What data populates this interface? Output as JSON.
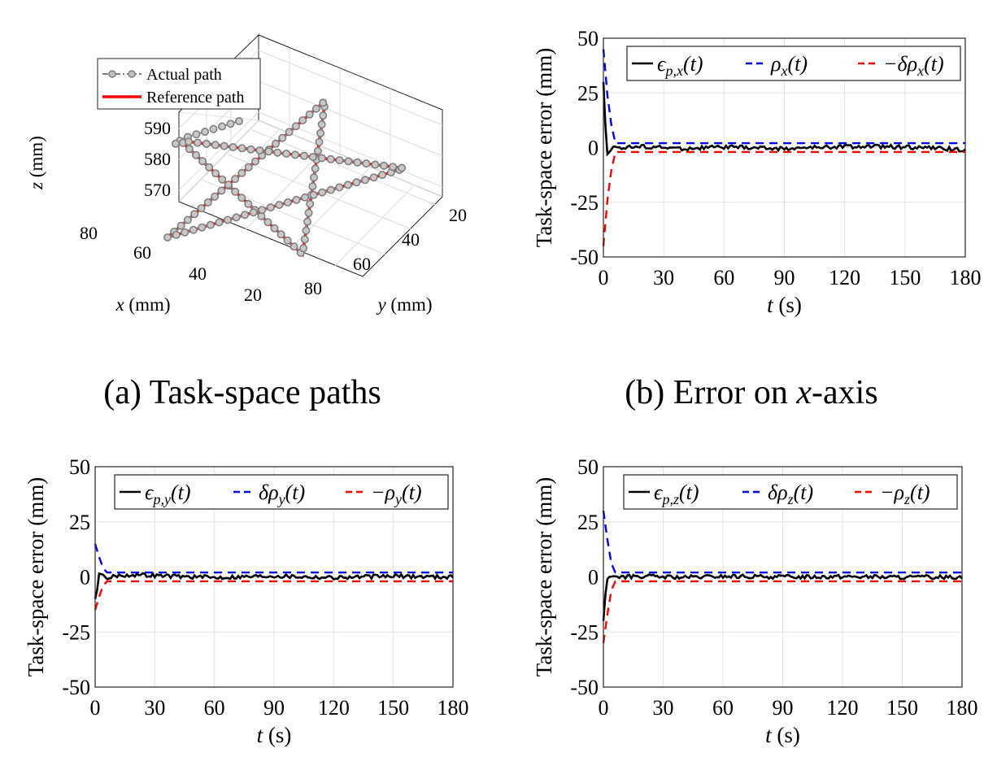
{
  "captions": {
    "a": "(a) Task-space paths",
    "b": "(b) Error on x-axis"
  },
  "chart_data": [
    {
      "id": "a",
      "type": "line3d",
      "title": "Task-space paths",
      "xlabel": "x (mm)",
      "ylabel": "y (mm)",
      "zlabel": "z (mm)",
      "x_ticks": [
        "80",
        "60",
        "40",
        "20"
      ],
      "y_ticks": [
        "20",
        "40",
        "60",
        "80"
      ],
      "z_ticks": [
        "590",
        "580",
        "570"
      ],
      "xlim": [
        15,
        90
      ],
      "ylim": [
        15,
        90
      ],
      "zlim": [
        565,
        595
      ],
      "legend": [
        "Actual path",
        "Reference path"
      ],
      "series": [
        {
          "name": "Actual path",
          "style": "gray dash-dot with circle markers",
          "color": "#7f7f7f"
        },
        {
          "name": "Reference path",
          "style": "solid red",
          "color": "#ff0000"
        }
      ],
      "annotations": [
        "five-pointed star path; actual path starts at approximately (x=20, y=25, z=591) and converges onto the reference star"
      ]
    },
    {
      "id": "b",
      "type": "line",
      "xlabel": "t (s)",
      "ylabel": "Task-space error (mm)",
      "xlim": [
        0,
        180
      ],
      "ylim": [
        -50,
        50
      ],
      "x_ticks": [
        "0",
        "30",
        "60",
        "90",
        "120",
        "150",
        "180"
      ],
      "y_ticks": [
        "50",
        "25",
        "0",
        "-25",
        "-50"
      ],
      "legend": [
        "ε_p,x(t)",
        "ρ_x(t)",
        "−δρ_x(t)"
      ],
      "series": [
        {
          "name": "ε_p,x(t)",
          "color": "#000000",
          "style": "solid",
          "x": [
            0,
            1,
            2,
            3,
            5,
            10,
            20,
            40,
            60,
            90,
            120,
            150,
            180
          ],
          "y": [
            30,
            10,
            -3,
            -2,
            0.5,
            0,
            0.5,
            -0.5,
            0.3,
            -0.5,
            0.5,
            0.3,
            -1
          ]
        },
        {
          "name": "ρ_x(t)",
          "color": "#0000ff",
          "style": "dashed",
          "x": [
            0,
            2,
            4,
            6,
            8,
            180
          ],
          "y": [
            45,
            24,
            10,
            2,
            2,
            2
          ]
        },
        {
          "name": "−δρ_x(t)",
          "color": "#ff0000",
          "style": "dashed",
          "x": [
            0,
            2,
            4,
            6,
            8,
            180
          ],
          "y": [
            -45,
            -24,
            -10,
            -2,
            -2,
            -2
          ]
        }
      ]
    },
    {
      "id": "c",
      "type": "line",
      "xlabel": "t (s)",
      "ylabel": "Task-space error (mm)",
      "xlim": [
        0,
        180
      ],
      "ylim": [
        -50,
        50
      ],
      "x_ticks": [
        "0",
        "30",
        "60",
        "90",
        "120",
        "150",
        "180"
      ],
      "y_ticks": [
        "50",
        "25",
        "0",
        "-25",
        "-50"
      ],
      "legend": [
        "ε_p,y(t)",
        "δρ_y(t)",
        "−ρ_y(t)"
      ],
      "series": [
        {
          "name": "ε_p,y(t)",
          "color": "#000000",
          "style": "solid",
          "x": [
            0,
            1,
            2,
            4,
            6,
            10,
            20,
            40,
            60,
            90,
            120,
            150,
            180
          ],
          "y": [
            -10,
            -6,
            1.5,
            1,
            -1,
            0.5,
            1,
            0.3,
            -0.3,
            0.5,
            -0.3,
            0.3,
            0
          ]
        },
        {
          "name": "δρ_y(t)",
          "color": "#0000ff",
          "style": "dashed",
          "x": [
            0,
            2,
            4,
            6,
            8,
            180
          ],
          "y": [
            15,
            9,
            4,
            2,
            2,
            2
          ]
        },
        {
          "name": "−ρ_y(t)",
          "color": "#ff0000",
          "style": "dashed",
          "x": [
            0,
            2,
            4,
            6,
            8,
            180
          ],
          "y": [
            -15,
            -9,
            -4,
            -2,
            -2,
            -2
          ]
        }
      ]
    },
    {
      "id": "d",
      "type": "line",
      "xlabel": "t (s)",
      "ylabel": "Task-space error (mm)",
      "xlim": [
        0,
        180
      ],
      "ylim": [
        -50,
        50
      ],
      "x_ticks": [
        "0",
        "30",
        "60",
        "90",
        "120",
        "150",
        "180"
      ],
      "y_ticks": [
        "50",
        "25",
        "0",
        "-25",
        "-50"
      ],
      "legend": [
        "ε_p,z(t)",
        "δρ_z(t)",
        "−ρ_z(t)"
      ],
      "series": [
        {
          "name": "ε_p,z(t)",
          "color": "#000000",
          "style": "solid",
          "x": [
            0,
            1,
            2,
            3,
            5,
            10,
            20,
            40,
            60,
            90,
            120,
            150,
            180
          ],
          "y": [
            -20,
            -8,
            -1,
            0,
            0.3,
            0,
            0.3,
            -0.3,
            0.2,
            0,
            0.2,
            -0.2,
            0
          ]
        },
        {
          "name": "δρ_z(t)",
          "color": "#0000ff",
          "style": "dashed",
          "x": [
            0,
            2,
            4,
            6,
            8,
            180
          ],
          "y": [
            30,
            17,
            6,
            2,
            2,
            2
          ]
        },
        {
          "name": "−ρ_z(t)",
          "color": "#ff0000",
          "style": "dashed",
          "x": [
            0,
            2,
            4,
            6,
            8,
            180
          ],
          "y": [
            -30,
            -17,
            -6,
            -2,
            -2,
            -2
          ]
        }
      ]
    }
  ]
}
